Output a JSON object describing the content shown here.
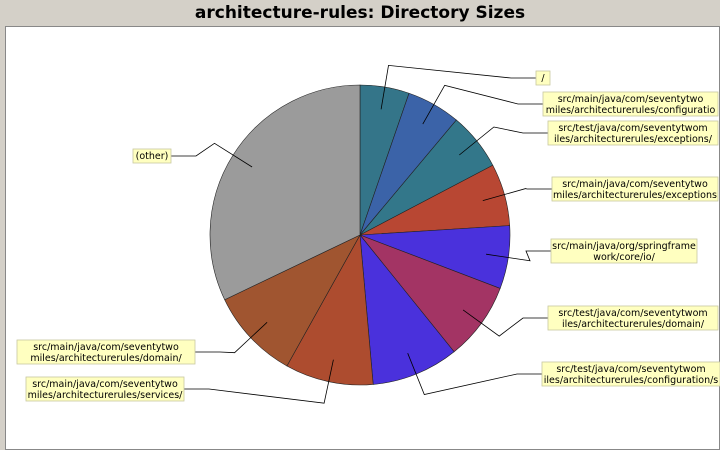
{
  "chart_data": {
    "type": "pie",
    "title": "architecture-rules: Directory Sizes",
    "slices": [
      {
        "label": "/",
        "value": 5.3,
        "color": "#347589"
      },
      {
        "label": "src/main/java/com/seventytwomiles/architecturerules/configuration/",
        "value": 5.8,
        "color": "#3b63a8"
      },
      {
        "label": "src/test/java/com/seventytwomiles/architecturerules/exceptions/",
        "value": 6.2,
        "color": "#33778a"
      },
      {
        "label": "src/main/java/com/seventytwomiles/architecturerules/exceptions/",
        "value": 6.7,
        "color": "#b84733"
      },
      {
        "label": "src/main/java/org/springframework/core/io/",
        "value": 6.8,
        "color": "#4a31dc"
      },
      {
        "label": "src/test/java/com/seventytwomiles/architecturerules/domain/",
        "value": 8.4,
        "color": "#a33464"
      },
      {
        "label": "src/test/java/com/seventytwomiles/architecturerules/configuration/",
        "value": 9.4,
        "color": "#4a31dc"
      },
      {
        "label": "src/main/java/com/seventytwomiles/architecturerules/services/",
        "value": 9.5,
        "color": "#ad4c2f"
      },
      {
        "label": "src/main/java/com/seventytwomiles/architecturerules/domain/",
        "value": 9.8,
        "color": "#a05530"
      },
      {
        "label": "(other)",
        "value": 32.1,
        "color": "#9b9b9b"
      }
    ],
    "legend": "none"
  },
  "labels": [
    {
      "lines": [
        "/"
      ]
    },
    {
      "lines": [
        "src/main/java/com/seventytwo",
        "miles/architecturerules/configuratio"
      ]
    },
    {
      "lines": [
        "src/test/java/com/seventytwom",
        "iles/architecturerules/exceptions/"
      ]
    },
    {
      "lines": [
        "src/main/java/com/seventytwo",
        "miles/architecturerules/exceptions"
      ]
    },
    {
      "lines": [
        "src/main/java/org/springframe",
        "work/core/io/"
      ]
    },
    {
      "lines": [
        "src/test/java/com/seventytwom",
        "iles/architecturerules/domain/"
      ]
    },
    {
      "lines": [
        "src/test/java/com/seventytwom",
        "iles/architecturerules/configuration/s"
      ]
    },
    {
      "lines": [
        "src/main/java/com/seventytwo",
        "miles/architecturerules/services/"
      ]
    },
    {
      "lines": [
        "src/main/java/com/seventytwo",
        "miles/architecturerules/domain/"
      ]
    },
    {
      "lines": [
        "(other)"
      ]
    }
  ],
  "colors": {
    "background": "#d4d0c8",
    "plot": "#ffffff",
    "label_box": "#ffffc0",
    "label_border": "#c8c8a0"
  }
}
